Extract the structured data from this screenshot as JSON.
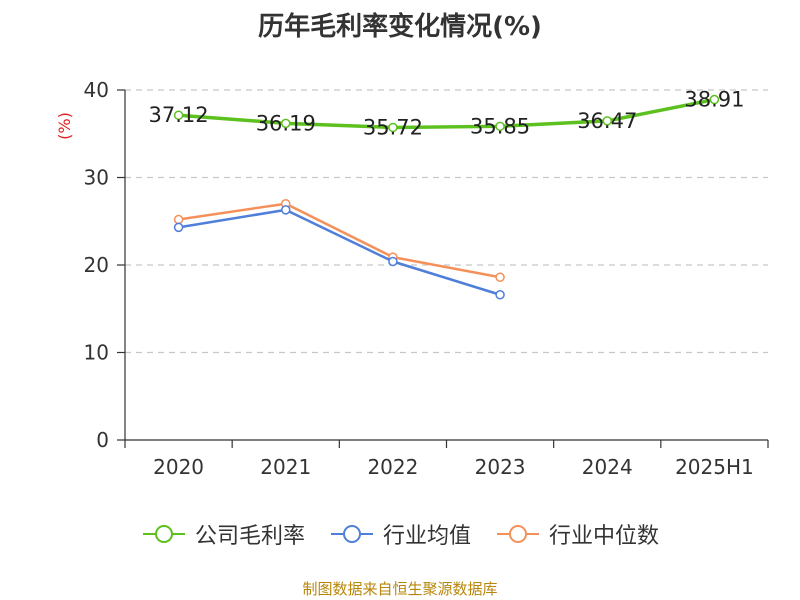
{
  "chart_data": {
    "type": "line",
    "title": "历年毛利率变化情况(%)",
    "ylabel": "(%)",
    "xlabel": "",
    "categories": [
      "2020",
      "2021",
      "2022",
      "2023",
      "2024",
      "2025H1"
    ],
    "ylim": [
      0,
      40
    ],
    "yticks": [
      0,
      10,
      20,
      30,
      40
    ],
    "grid": true,
    "legend_position": "bottom",
    "series": [
      {
        "name": "公司毛利率",
        "color": "#5cc11f",
        "values": [
          37.12,
          36.19,
          35.72,
          35.85,
          36.47,
          38.91
        ],
        "labels": [
          "37.12",
          "36.19",
          "35.72",
          "35.85",
          "36.47",
          "38.91"
        ]
      },
      {
        "name": "行业均值",
        "color": "#4f7fd9",
        "values": [
          24.3,
          26.3,
          20.4,
          16.6,
          null,
          null
        ]
      },
      {
        "name": "行业中位数",
        "color": "#f4915b",
        "values": [
          25.2,
          27.0,
          20.9,
          18.6,
          null,
          null
        ]
      }
    ]
  },
  "source_note": "制图数据来自恒生聚源数据库"
}
